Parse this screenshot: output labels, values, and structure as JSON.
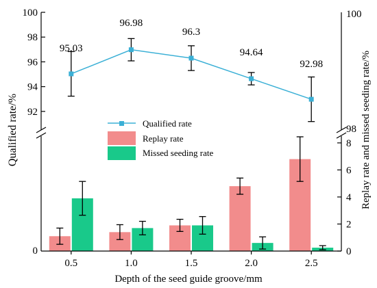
{
  "chart_data": {
    "type": "bar",
    "xlabel": "Depth of the seed guide groove/mm",
    "ylabel_left": "Qualified rate/%",
    "ylabel_right": "Replay rate and missed seeding rate/%",
    "categories": [
      "0.5",
      "1.0",
      "1.5",
      "2.0",
      "2.5"
    ],
    "qualified": {
      "name": "Qualified rate",
      "type": "line",
      "color": "#3bb0d6",
      "values": [
        95.03,
        96.98,
        96.3,
        94.64,
        92.98
      ],
      "errors": [
        1.8,
        0.9,
        1.0,
        0.5,
        1.8
      ],
      "labels": [
        "95.03",
        "96.98",
        "96.3",
        "94.64",
        "92.98"
      ],
      "ylim": [
        90.5,
        100
      ],
      "ticks": [
        92,
        94,
        96,
        98,
        100
      ],
      "tick_labels": [
        "92",
        "94",
        "96",
        "98",
        "100"
      ]
    },
    "series": [
      {
        "name": "Replay rate",
        "color": "#f28c8c",
        "values": [
          1.1,
          1.4,
          1.9,
          4.8,
          6.8
        ],
        "errors": [
          0.6,
          0.55,
          0.45,
          0.6,
          1.65
        ]
      },
      {
        "name": "Missed seeding rate",
        "color": "#19c98a",
        "values": [
          3.9,
          1.7,
          1.9,
          0.6,
          0.25
        ],
        "errors": [
          1.25,
          0.5,
          0.65,
          0.45,
          0.15
        ]
      }
    ],
    "lower_left_ticks": [
      0
    ],
    "lower_left_tick_labels": [
      "0"
    ],
    "right_ylim": [
      0,
      8.5
    ],
    "right_ticks": [
      0,
      2,
      4,
      6,
      8
    ],
    "right_tick_labels": [
      "0",
      "2",
      "4",
      "6",
      "8"
    ],
    "right_top_labels": [
      "100",
      "98"
    ],
    "legend_position": "center"
  }
}
